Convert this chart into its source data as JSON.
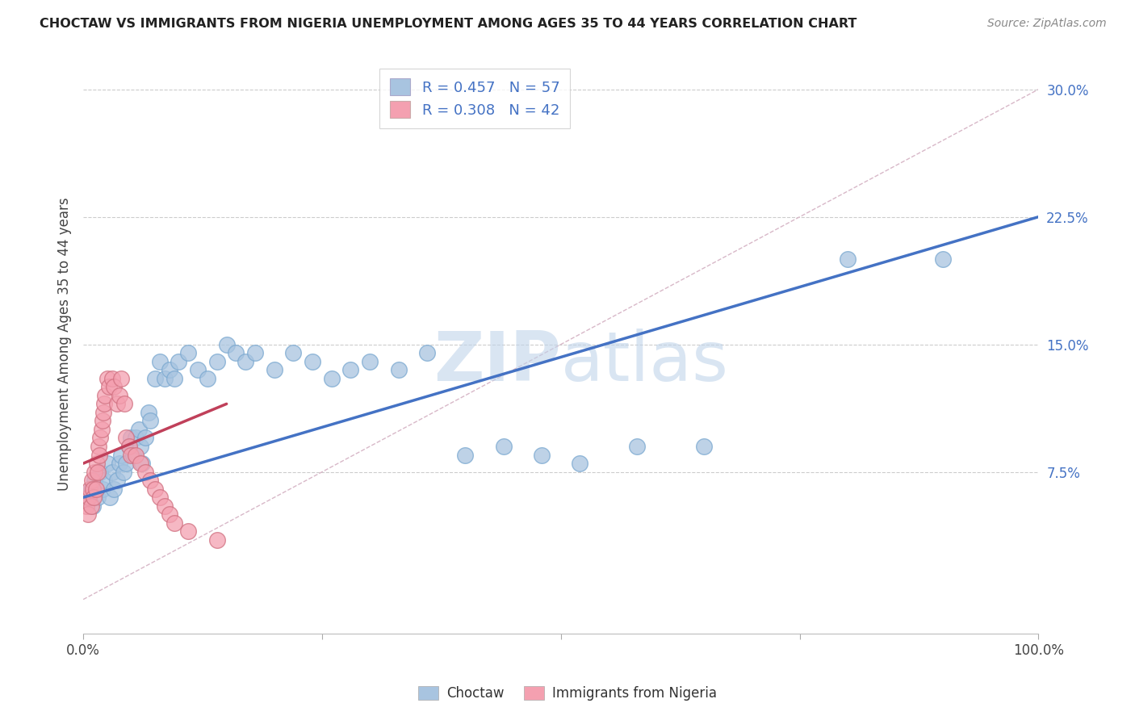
{
  "title": "CHOCTAW VS IMMIGRANTS FROM NIGERIA UNEMPLOYMENT AMONG AGES 35 TO 44 YEARS CORRELATION CHART",
  "source": "Source: ZipAtlas.com",
  "ylabel": "Unemployment Among Ages 35 to 44 years",
  "ytick_labels": [
    "7.5%",
    "15.0%",
    "22.5%",
    "30.0%"
  ],
  "ytick_vals": [
    0.075,
    0.15,
    0.225,
    0.3
  ],
  "xlim": [
    0.0,
    1.0
  ],
  "ylim": [
    -0.02,
    0.32
  ],
  "legend_labels": [
    "Choctaw",
    "Immigrants from Nigeria"
  ],
  "R_choctaw": 0.457,
  "N_choctaw": 57,
  "R_nigeria": 0.308,
  "N_nigeria": 42,
  "choctaw_color": "#a8c4e0",
  "nigeria_color": "#f4a0b0",
  "choctaw_line_color": "#4472c4",
  "nigeria_line_color": "#c0405a",
  "diagonal_color": "#d8b8c8",
  "watermark_color": "#c0d4ea",
  "background_color": "#ffffff",
  "choctaw_x": [
    0.005,
    0.008,
    0.01,
    0.012,
    0.015,
    0.018,
    0.02,
    0.022,
    0.025,
    0.028,
    0.03,
    0.032,
    0.035,
    0.038,
    0.04,
    0.042,
    0.045,
    0.048,
    0.05,
    0.052,
    0.055,
    0.058,
    0.06,
    0.062,
    0.065,
    0.068,
    0.07,
    0.075,
    0.08,
    0.085,
    0.09,
    0.095,
    0.1,
    0.11,
    0.12,
    0.13,
    0.14,
    0.15,
    0.16,
    0.17,
    0.18,
    0.2,
    0.22,
    0.24,
    0.26,
    0.28,
    0.3,
    0.33,
    0.36,
    0.4,
    0.44,
    0.48,
    0.52,
    0.58,
    0.65,
    0.8,
    0.9
  ],
  "choctaw_y": [
    0.06,
    0.065,
    0.055,
    0.07,
    0.06,
    0.075,
    0.065,
    0.07,
    0.08,
    0.06,
    0.075,
    0.065,
    0.07,
    0.08,
    0.085,
    0.075,
    0.08,
    0.09,
    0.095,
    0.085,
    0.095,
    0.1,
    0.09,
    0.08,
    0.095,
    0.11,
    0.105,
    0.13,
    0.14,
    0.13,
    0.135,
    0.13,
    0.14,
    0.145,
    0.135,
    0.13,
    0.14,
    0.15,
    0.145,
    0.14,
    0.145,
    0.135,
    0.145,
    0.14,
    0.13,
    0.135,
    0.14,
    0.135,
    0.145,
    0.085,
    0.09,
    0.085,
    0.08,
    0.09,
    0.09,
    0.2,
    0.2
  ],
  "nigeria_x": [
    0.003,
    0.005,
    0.006,
    0.007,
    0.008,
    0.009,
    0.01,
    0.011,
    0.012,
    0.013,
    0.014,
    0.015,
    0.016,
    0.017,
    0.018,
    0.019,
    0.02,
    0.021,
    0.022,
    0.023,
    0.025,
    0.027,
    0.03,
    0.032,
    0.035,
    0.038,
    0.04,
    0.043,
    0.045,
    0.048,
    0.05,
    0.055,
    0.06,
    0.065,
    0.07,
    0.075,
    0.08,
    0.085,
    0.09,
    0.095,
    0.11,
    0.14
  ],
  "nigeria_y": [
    0.055,
    0.05,
    0.06,
    0.065,
    0.055,
    0.07,
    0.065,
    0.06,
    0.075,
    0.065,
    0.08,
    0.075,
    0.09,
    0.085,
    0.095,
    0.1,
    0.105,
    0.11,
    0.115,
    0.12,
    0.13,
    0.125,
    0.13,
    0.125,
    0.115,
    0.12,
    0.13,
    0.115,
    0.095,
    0.09,
    0.085,
    0.085,
    0.08,
    0.075,
    0.07,
    0.065,
    0.06,
    0.055,
    0.05,
    0.045,
    0.04,
    0.035
  ],
  "choctaw_line_x0": 0.0,
  "choctaw_line_y0": 0.06,
  "choctaw_line_x1": 1.0,
  "choctaw_line_y1": 0.225,
  "nigeria_line_x0": 0.0,
  "nigeria_line_y0": 0.08,
  "nigeria_line_x1": 0.15,
  "nigeria_line_y1": 0.115
}
